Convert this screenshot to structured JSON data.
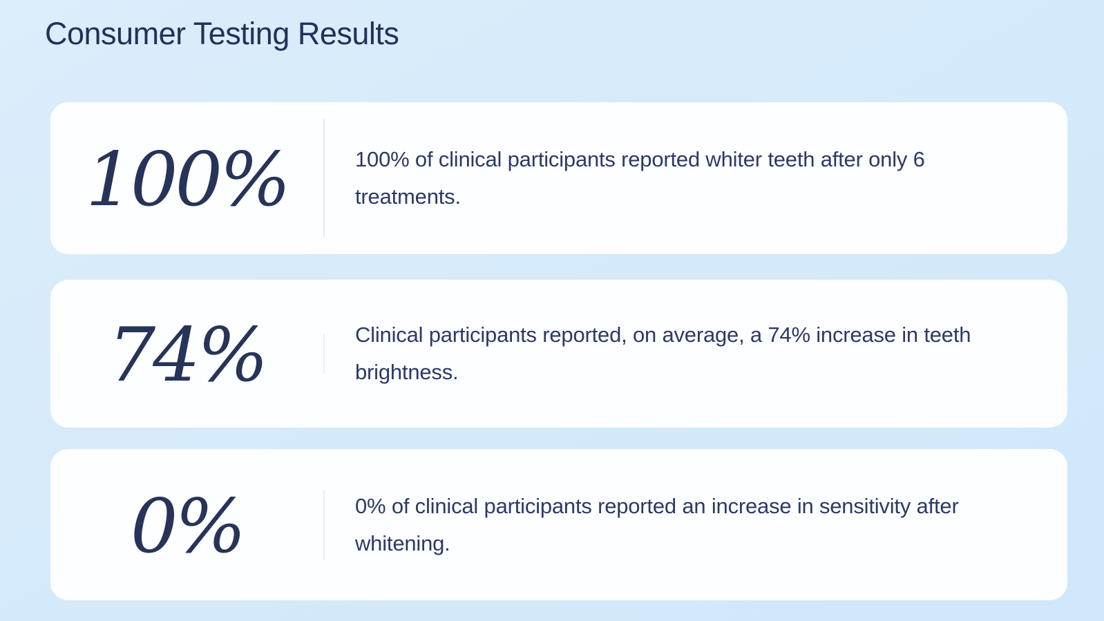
{
  "page_title": "Consumer Testing Results",
  "colors": {
    "page_background": "#d5eafa",
    "card_background": "#fdfeff",
    "heading_text": "#223158",
    "stat_text": "#273459",
    "body_text": "#2b3a66",
    "divider": "#e7e9ee"
  },
  "cards": [
    {
      "stat": "100%",
      "description": "100% of clinical participants reported whiter teeth after only 6 treatments."
    },
    {
      "stat": "74%",
      "description": "Clinical participants reported, on average, a 74% increase in teeth brightness."
    },
    {
      "stat": "0%",
      "description": "0% of clinical participants reported an increase in sensitivity after whitening."
    }
  ]
}
